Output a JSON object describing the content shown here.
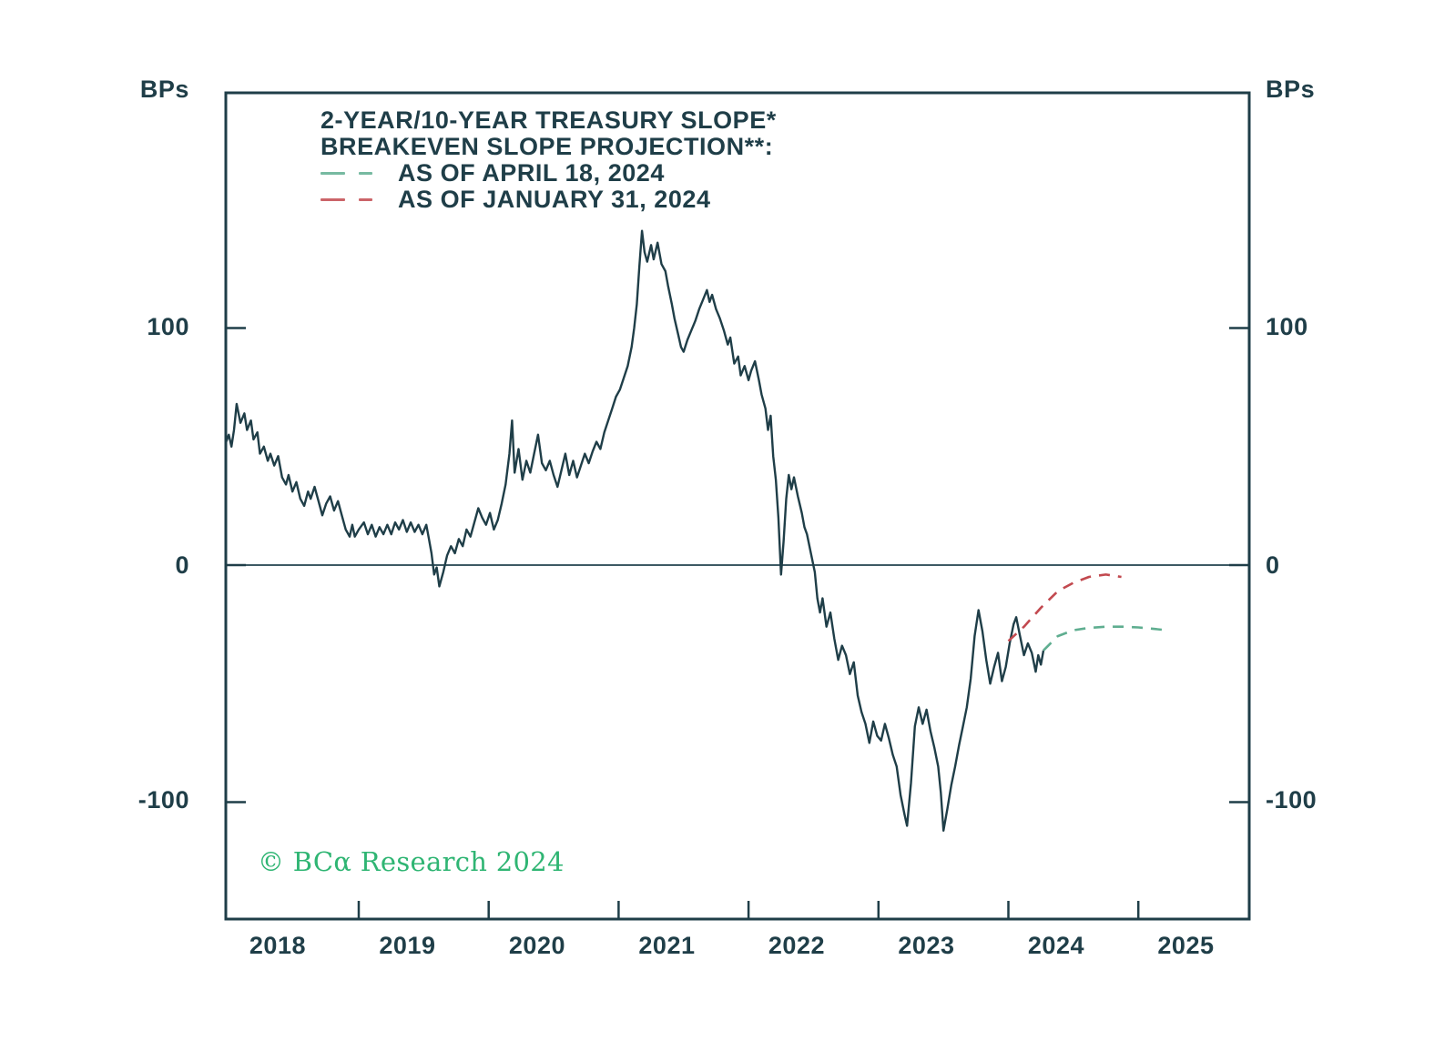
{
  "chart_data": {
    "type": "line",
    "title": "2-YEAR/10-YEAR TREASURY SLOPE*",
    "subtitle": "BREAKEVEN SLOPE PROJECTION**:",
    "unit_left": "BPs",
    "unit_right": "BPs",
    "y_ticks": [
      100,
      0,
      -100
    ],
    "y_tick_labels": [
      "100",
      "0",
      "-100"
    ],
    "x_tick_years": [
      2018,
      2019,
      2020,
      2021,
      2022,
      2023,
      2024,
      2025
    ],
    "x_tick_labels": [
      "2018",
      "2019",
      "2020",
      "2021",
      "2022",
      "2023",
      "2024",
      "2025"
    ],
    "xlim": [
      2017.98,
      2025.86
    ],
    "ylim": [
      -149,
      200
    ],
    "grid": "zero-line-only",
    "legend_position": "top-left-inside",
    "legend": [
      {
        "label": "AS OF APRIL 18, 2024",
        "color": "#5fae90",
        "style": "dashed"
      },
      {
        "label": "AS OF JANUARY 31, 2024",
        "color": "#c2494f",
        "style": "dashed"
      }
    ],
    "colors": {
      "line": "#1f3e48",
      "axis": "#1f3e48",
      "zero_line": "#3d5a64",
      "projection_april": "#5fae90",
      "projection_january": "#c2494f",
      "copyright_green": "#2fb573"
    },
    "copyright": "© BCα Research 2024",
    "series": [
      {
        "name": "2-Year/10-Year Treasury Slope",
        "style": "solid",
        "color": "#1f3e48",
        "points": [
          [
            2017.98,
            52
          ],
          [
            2018.0,
            55
          ],
          [
            2018.02,
            50
          ],
          [
            2018.04,
            57
          ],
          [
            2018.06,
            68
          ],
          [
            2018.09,
            60
          ],
          [
            2018.12,
            64
          ],
          [
            2018.14,
            57
          ],
          [
            2018.17,
            61
          ],
          [
            2018.19,
            53
          ],
          [
            2018.22,
            56
          ],
          [
            2018.24,
            47
          ],
          [
            2018.27,
            50
          ],
          [
            2018.3,
            44
          ],
          [
            2018.32,
            47
          ],
          [
            2018.35,
            42
          ],
          [
            2018.38,
            46
          ],
          [
            2018.41,
            37
          ],
          [
            2018.44,
            34
          ],
          [
            2018.46,
            38
          ],
          [
            2018.49,
            31
          ],
          [
            2018.52,
            35
          ],
          [
            2018.55,
            28
          ],
          [
            2018.58,
            25
          ],
          [
            2018.61,
            31
          ],
          [
            2018.63,
            28
          ],
          [
            2018.66,
            33
          ],
          [
            2018.69,
            27
          ],
          [
            2018.72,
            21
          ],
          [
            2018.75,
            26
          ],
          [
            2018.78,
            29
          ],
          [
            2018.81,
            23
          ],
          [
            2018.84,
            27
          ],
          [
            2018.87,
            21
          ],
          [
            2018.9,
            15
          ],
          [
            2018.93,
            12
          ],
          [
            2018.95,
            17
          ],
          [
            2018.97,
            12
          ],
          [
            2019.0,
            15
          ],
          [
            2019.04,
            18
          ],
          [
            2019.07,
            13
          ],
          [
            2019.1,
            17
          ],
          [
            2019.13,
            12
          ],
          [
            2019.16,
            16
          ],
          [
            2019.19,
            13
          ],
          [
            2019.22,
            17
          ],
          [
            2019.25,
            13
          ],
          [
            2019.28,
            18
          ],
          [
            2019.31,
            15
          ],
          [
            2019.34,
            19
          ],
          [
            2019.37,
            14
          ],
          [
            2019.4,
            18
          ],
          [
            2019.43,
            14
          ],
          [
            2019.46,
            17
          ],
          [
            2019.49,
            13
          ],
          [
            2019.52,
            17
          ],
          [
            2019.54,
            11
          ],
          [
            2019.56,
            5
          ],
          [
            2019.58,
            -4
          ],
          [
            2019.6,
            -1
          ],
          [
            2019.62,
            -9
          ],
          [
            2019.65,
            -3
          ],
          [
            2019.68,
            4
          ],
          [
            2019.71,
            8
          ],
          [
            2019.74,
            5
          ],
          [
            2019.77,
            11
          ],
          [
            2019.8,
            8
          ],
          [
            2019.83,
            15
          ],
          [
            2019.86,
            12
          ],
          [
            2019.89,
            18
          ],
          [
            2019.92,
            24
          ],
          [
            2019.95,
            20
          ],
          [
            2019.98,
            17
          ],
          [
            2020.01,
            22
          ],
          [
            2020.04,
            15
          ],
          [
            2020.07,
            19
          ],
          [
            2020.1,
            26
          ],
          [
            2020.13,
            34
          ],
          [
            2020.16,
            47
          ],
          [
            2020.18,
            61
          ],
          [
            2020.2,
            39
          ],
          [
            2020.23,
            49
          ],
          [
            2020.26,
            36
          ],
          [
            2020.29,
            44
          ],
          [
            2020.32,
            39
          ],
          [
            2020.35,
            47
          ],
          [
            2020.38,
            55
          ],
          [
            2020.41,
            43
          ],
          [
            2020.44,
            40
          ],
          [
            2020.47,
            44
          ],
          [
            2020.5,
            38
          ],
          [
            2020.53,
            33
          ],
          [
            2020.56,
            40
          ],
          [
            2020.59,
            47
          ],
          [
            2020.62,
            38
          ],
          [
            2020.65,
            44
          ],
          [
            2020.68,
            37
          ],
          [
            2020.71,
            42
          ],
          [
            2020.74,
            47
          ],
          [
            2020.77,
            43
          ],
          [
            2020.8,
            48
          ],
          [
            2020.83,
            52
          ],
          [
            2020.86,
            49
          ],
          [
            2020.89,
            56
          ],
          [
            2020.92,
            61
          ],
          [
            2020.95,
            66
          ],
          [
            2020.98,
            71
          ],
          [
            2021.01,
            74
          ],
          [
            2021.04,
            79
          ],
          [
            2021.07,
            84
          ],
          [
            2021.1,
            92
          ],
          [
            2021.12,
            100
          ],
          [
            2021.14,
            110
          ],
          [
            2021.16,
            126
          ],
          [
            2021.18,
            141
          ],
          [
            2021.2,
            132
          ],
          [
            2021.22,
            128
          ],
          [
            2021.25,
            135
          ],
          [
            2021.27,
            129
          ],
          [
            2021.3,
            136
          ],
          [
            2021.33,
            127
          ],
          [
            2021.36,
            124
          ],
          [
            2021.38,
            118
          ],
          [
            2021.41,
            110
          ],
          [
            2021.43,
            104
          ],
          [
            2021.46,
            97
          ],
          [
            2021.48,
            92
          ],
          [
            2021.5,
            90
          ],
          [
            2021.53,
            95
          ],
          [
            2021.56,
            99
          ],
          [
            2021.59,
            103
          ],
          [
            2021.62,
            108
          ],
          [
            2021.65,
            112
          ],
          [
            2021.68,
            116
          ],
          [
            2021.7,
            111
          ],
          [
            2021.72,
            114
          ],
          [
            2021.75,
            108
          ],
          [
            2021.78,
            104
          ],
          [
            2021.81,
            99
          ],
          [
            2021.84,
            93
          ],
          [
            2021.86,
            96
          ],
          [
            2021.89,
            85
          ],
          [
            2021.92,
            88
          ],
          [
            2021.94,
            80
          ],
          [
            2021.97,
            84
          ],
          [
            2022.0,
            78
          ],
          [
            2022.02,
            82
          ],
          [
            2022.05,
            86
          ],
          [
            2022.08,
            78
          ],
          [
            2022.1,
            72
          ],
          [
            2022.13,
            66
          ],
          [
            2022.15,
            57
          ],
          [
            2022.17,
            63
          ],
          [
            2022.19,
            46
          ],
          [
            2022.21,
            36
          ],
          [
            2022.23,
            20
          ],
          [
            2022.25,
            -4
          ],
          [
            2022.27,
            10
          ],
          [
            2022.29,
            28
          ],
          [
            2022.31,
            38
          ],
          [
            2022.33,
            32
          ],
          [
            2022.35,
            37
          ],
          [
            2022.38,
            29
          ],
          [
            2022.41,
            22
          ],
          [
            2022.43,
            16
          ],
          [
            2022.45,
            13
          ],
          [
            2022.48,
            5
          ],
          [
            2022.51,
            -3
          ],
          [
            2022.53,
            -14
          ],
          [
            2022.55,
            -20
          ],
          [
            2022.57,
            -14
          ],
          [
            2022.6,
            -26
          ],
          [
            2022.63,
            -20
          ],
          [
            2022.66,
            -31
          ],
          [
            2022.69,
            -40
          ],
          [
            2022.72,
            -34
          ],
          [
            2022.75,
            -38
          ],
          [
            2022.78,
            -46
          ],
          [
            2022.81,
            -41
          ],
          [
            2022.84,
            -55
          ],
          [
            2022.87,
            -62
          ],
          [
            2022.9,
            -67
          ],
          [
            2022.93,
            -75
          ],
          [
            2022.96,
            -66
          ],
          [
            2022.99,
            -72
          ],
          [
            2023.02,
            -74
          ],
          [
            2023.05,
            -67
          ],
          [
            2023.08,
            -73
          ],
          [
            2023.11,
            -80
          ],
          [
            2023.14,
            -85
          ],
          [
            2023.17,
            -97
          ],
          [
            2023.2,
            -105
          ],
          [
            2023.22,
            -110
          ],
          [
            2023.25,
            -92
          ],
          [
            2023.28,
            -68
          ],
          [
            2023.31,
            -60
          ],
          [
            2023.34,
            -67
          ],
          [
            2023.37,
            -61
          ],
          [
            2023.4,
            -70
          ],
          [
            2023.43,
            -77
          ],
          [
            2023.46,
            -85
          ],
          [
            2023.48,
            -96
          ],
          [
            2023.5,
            -112
          ],
          [
            2023.53,
            -103
          ],
          [
            2023.56,
            -93
          ],
          [
            2023.59,
            -85
          ],
          [
            2023.62,
            -76
          ],
          [
            2023.65,
            -68
          ],
          [
            2023.68,
            -60
          ],
          [
            2023.71,
            -48
          ],
          [
            2023.74,
            -30
          ],
          [
            2023.77,
            -19
          ],
          [
            2023.8,
            -28
          ],
          [
            2023.83,
            -40
          ],
          [
            2023.86,
            -50
          ],
          [
            2023.89,
            -43
          ],
          [
            2023.92,
            -37
          ],
          [
            2023.95,
            -49
          ],
          [
            2023.98,
            -43
          ],
          [
            2024.01,
            -33
          ],
          [
            2024.04,
            -25
          ],
          [
            2024.06,
            -22
          ],
          [
            2024.09,
            -30
          ],
          [
            2024.12,
            -38
          ],
          [
            2024.15,
            -33
          ],
          [
            2024.18,
            -37
          ],
          [
            2024.21,
            -45
          ],
          [
            2024.23,
            -38
          ],
          [
            2024.25,
            -42
          ],
          [
            2024.27,
            -36
          ]
        ]
      },
      {
        "name": "Breakeven Slope Projection as of April 18, 2024",
        "style": "dashed",
        "color": "#5fae90",
        "points": [
          [
            2024.27,
            -36
          ],
          [
            2024.38,
            -30
          ],
          [
            2024.5,
            -27.5
          ],
          [
            2024.62,
            -26.5
          ],
          [
            2024.75,
            -26
          ],
          [
            2024.88,
            -26
          ],
          [
            2025.0,
            -26.3
          ],
          [
            2025.1,
            -26.8
          ],
          [
            2025.22,
            -27.5
          ]
        ]
      },
      {
        "name": "Breakeven Slope Projection as of January 31, 2024",
        "style": "dashed",
        "color": "#c2494f",
        "points": [
          [
            2024.0,
            -32
          ],
          [
            2024.12,
            -26
          ],
          [
            2024.25,
            -18
          ],
          [
            2024.38,
            -11
          ],
          [
            2024.5,
            -7.5
          ],
          [
            2024.62,
            -5
          ],
          [
            2024.75,
            -4
          ],
          [
            2024.87,
            -5
          ]
        ]
      }
    ]
  }
}
